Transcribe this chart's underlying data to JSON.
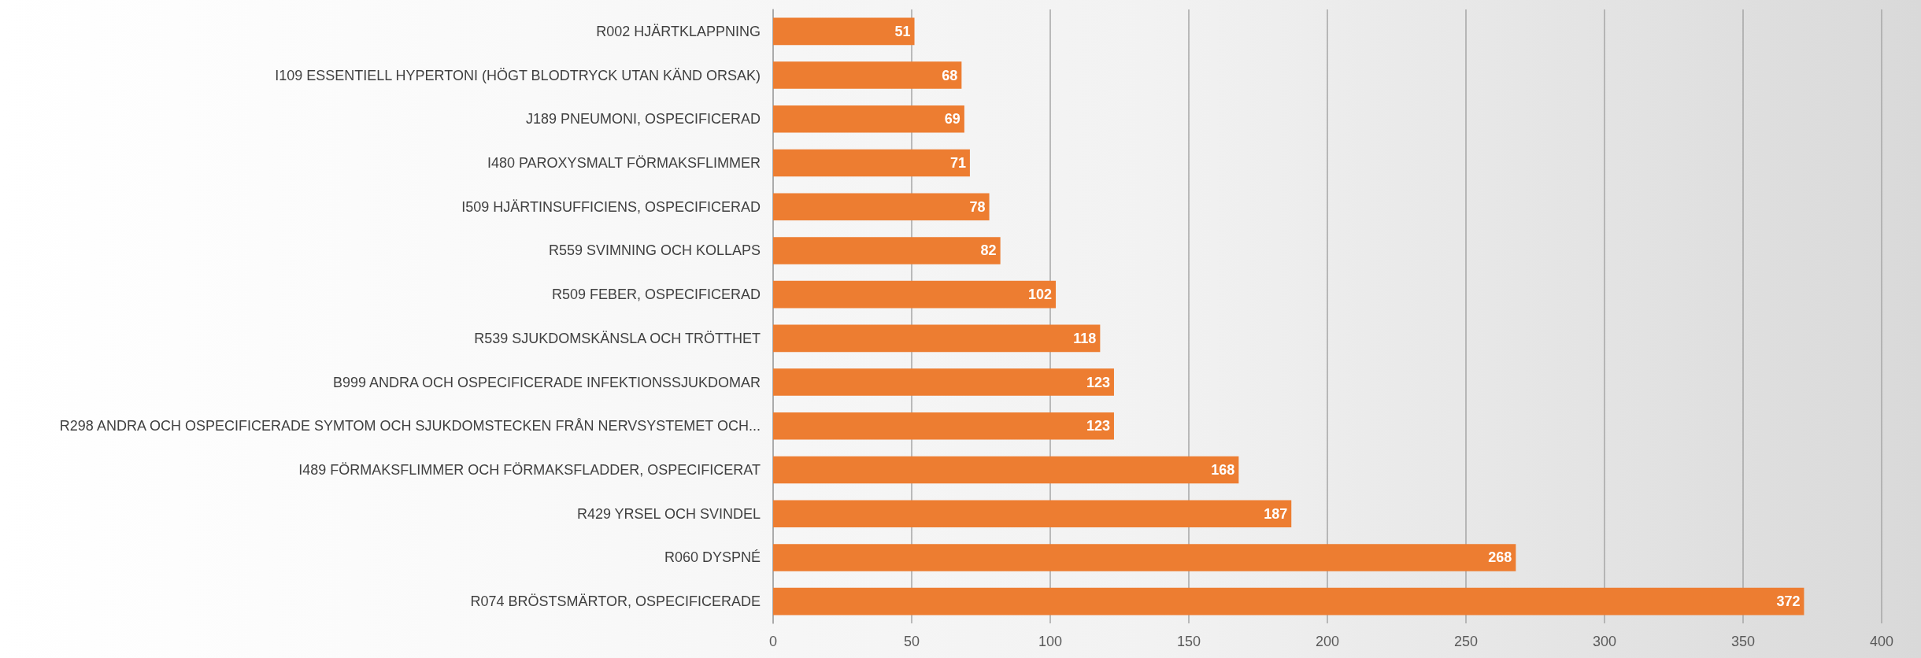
{
  "chart_data": {
    "type": "bar",
    "orientation": "horizontal",
    "categories": [
      "R002 HJÄRTKLAPPNING",
      "I109 ESSENTIELL HYPERTONI (HÖGT BLODTRYCK UTAN KÄND ORSAK)",
      "J189 PNEUMONI, OSPECIFICERAD",
      "I480 PAROXYSMALT FÖRMAKSFLIMMER",
      "I509 HJÄRTINSUFFICIENS, OSPECIFICERAD",
      "R559 SVIMNING OCH KOLLAPS",
      "R509 FEBER, OSPECIFICERAD",
      "R539 SJUKDOMSKÄNSLA OCH TRÖTTHET",
      "B999 ANDRA OCH OSPECIFICERADE INFEKTIONSSJUKDOMAR",
      "R298 ANDRA OCH OSPECIFICERADE SYMTOM OCH SJUKDOMSTECKEN FRÅN NERVSYSTEMET OCH...",
      "I489 FÖRMAKSFLIMMER OCH FÖRMAKSFLADDER, OSPECIFICERAT",
      "R429 YRSEL OCH SVINDEL",
      "R060 DYSPNÉ",
      "R074 BRÖSTSMÄRTOR, OSPECIFICERADE"
    ],
    "values": [
      51,
      68,
      69,
      71,
      78,
      82,
      102,
      118,
      123,
      123,
      168,
      187,
      268,
      372
    ],
    "color": "#ed7d31",
    "xlim": [
      0,
      400
    ],
    "xticks": [
      0,
      50,
      100,
      150,
      200,
      250,
      300,
      350,
      400
    ],
    "grid": "x",
    "data_labels": true
  }
}
